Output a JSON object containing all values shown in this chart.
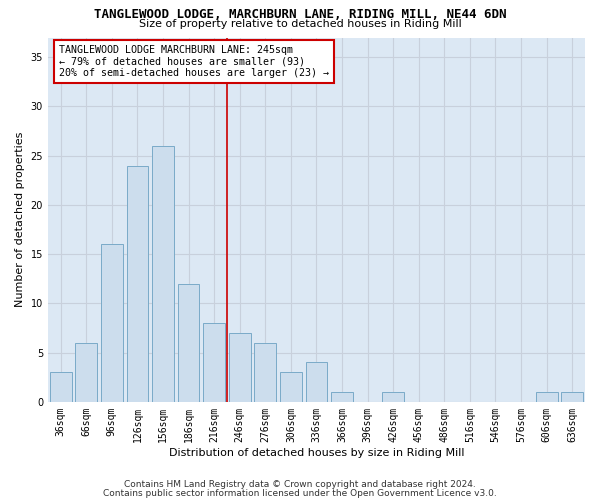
{
  "title": "TANGLEWOOD LODGE, MARCHBURN LANE, RIDING MILL, NE44 6DN",
  "subtitle": "Size of property relative to detached houses in Riding Mill",
  "xlabel": "Distribution of detached houses by size in Riding Mill",
  "ylabel": "Number of detached properties",
  "footnote1": "Contains HM Land Registry data © Crown copyright and database right 2024.",
  "footnote2": "Contains public sector information licensed under the Open Government Licence v3.0.",
  "bar_labels": [
    "36sqm",
    "66sqm",
    "96sqm",
    "126sqm",
    "156sqm",
    "186sqm",
    "216sqm",
    "246sqm",
    "276sqm",
    "306sqm",
    "336sqm",
    "366sqm",
    "396sqm",
    "426sqm",
    "456sqm",
    "486sqm",
    "516sqm",
    "546sqm",
    "576sqm",
    "606sqm",
    "636sqm"
  ],
  "bar_values": [
    3,
    6,
    16,
    24,
    26,
    12,
    8,
    7,
    6,
    3,
    4,
    1,
    0,
    1,
    0,
    0,
    0,
    0,
    0,
    1,
    1
  ],
  "bar_color": "#ccdded",
  "bar_edgecolor": "#7aaac8",
  "ylim": [
    0,
    37
  ],
  "yticks": [
    0,
    5,
    10,
    15,
    20,
    25,
    30,
    35
  ],
  "grid_color": "#c8d0dc",
  "background_color": "#dce8f4",
  "vline_x_index": 6.5,
  "vline_color": "#cc0000",
  "annotation_text": "TANGLEWOOD LODGE MARCHBURN LANE: 245sqm\n← 79% of detached houses are smaller (93)\n20% of semi-detached houses are larger (23) →",
  "annotation_box_edgecolor": "#cc0000",
  "title_fontsize": 9,
  "subtitle_fontsize": 8,
  "ylabel_fontsize": 8,
  "xlabel_fontsize": 8,
  "tick_fontsize": 7,
  "footnote_fontsize": 6.5
}
